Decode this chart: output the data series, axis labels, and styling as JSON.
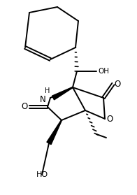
{
  "bg_color": "#ffffff",
  "line_color": "#000000",
  "lw": 1.4,
  "fig_width": 1.96,
  "fig_height": 2.79,
  "dpi": 100,
  "xlim": [
    0,
    196
  ],
  "ylim": [
    0,
    279
  ]
}
